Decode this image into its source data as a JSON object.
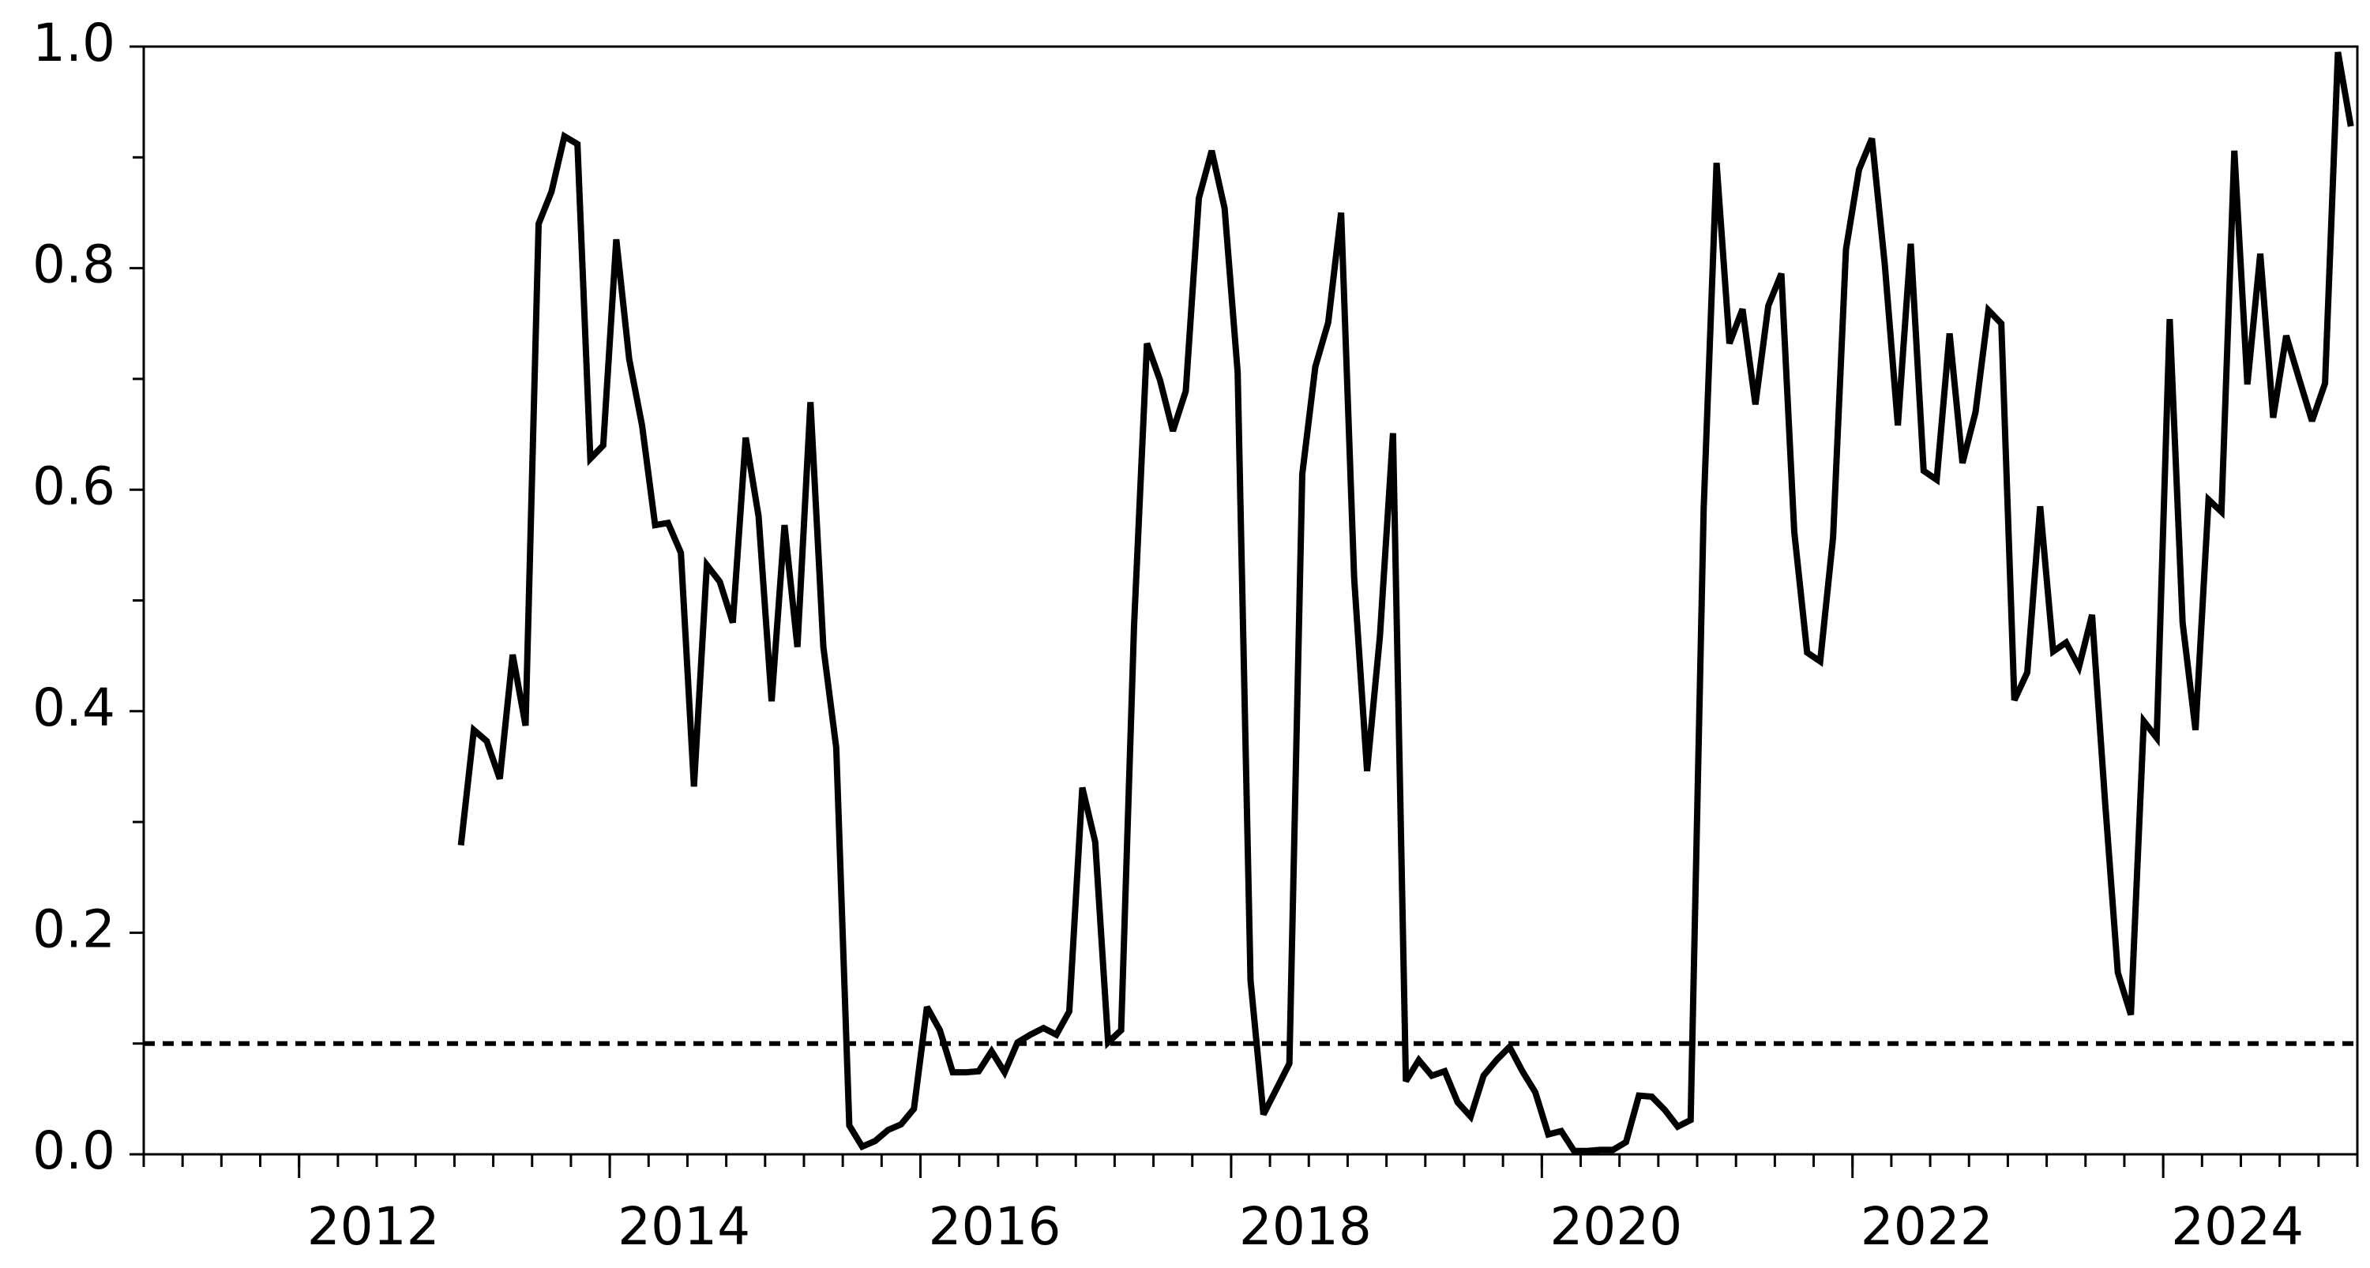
{
  "chart_data": {
    "type": "line",
    "x": [
      2013.042,
      2013.125,
      2013.208,
      2013.292,
      2013.375,
      2013.458,
      2013.542,
      2013.625,
      2013.708,
      2013.792,
      2013.875,
      2013.958,
      2014.042,
      2014.125,
      2014.208,
      2014.292,
      2014.375,
      2014.458,
      2014.542,
      2014.625,
      2014.708,
      2014.792,
      2014.875,
      2014.958,
      2015.042,
      2015.125,
      2015.208,
      2015.292,
      2015.375,
      2015.458,
      2015.542,
      2015.625,
      2015.708,
      2015.792,
      2015.875,
      2015.958,
      2016.042,
      2016.125,
      2016.208,
      2016.292,
      2016.375,
      2016.458,
      2016.542,
      2016.625,
      2016.708,
      2016.792,
      2016.875,
      2016.958,
      2017.042,
      2017.125,
      2017.208,
      2017.292,
      2017.375,
      2017.458,
      2017.542,
      2017.625,
      2017.708,
      2017.792,
      2017.875,
      2017.958,
      2018.042,
      2018.125,
      2018.208,
      2018.292,
      2018.375,
      2018.458,
      2018.542,
      2018.625,
      2018.708,
      2018.792,
      2018.875,
      2018.958,
      2019.042,
      2019.125,
      2019.208,
      2019.292,
      2019.375,
      2019.458,
      2019.542,
      2019.625,
      2019.708,
      2019.792,
      2019.875,
      2019.958,
      2020.042,
      2020.125,
      2020.208,
      2020.292,
      2020.375,
      2020.458,
      2020.542,
      2020.625,
      2020.708,
      2020.792,
      2020.875,
      2020.958,
      2021.042,
      2021.125,
      2021.208,
      2021.292,
      2021.375,
      2021.458,
      2021.542,
      2021.625,
      2021.708,
      2021.792,
      2021.875,
      2021.958,
      2022.042,
      2022.125,
      2022.208,
      2022.292,
      2022.375,
      2022.458,
      2022.542,
      2022.625,
      2022.708,
      2022.792,
      2022.875,
      2022.958,
      2023.042,
      2023.125,
      2023.208,
      2023.292,
      2023.375,
      2023.458,
      2023.542,
      2023.625,
      2023.708,
      2023.792,
      2023.875,
      2023.958,
      2024.042,
      2024.125,
      2024.208,
      2024.292,
      2024.375,
      2024.458,
      2024.542,
      2024.625,
      2024.708,
      2024.792,
      2024.875,
      2024.958,
      2025.042,
      2025.125,
      2025.208
    ],
    "values": [
      0.279,
      0.383,
      0.373,
      0.339,
      0.451,
      0.387,
      0.84,
      0.869,
      0.919,
      0.912,
      0.628,
      0.64,
      0.826,
      0.718,
      0.658,
      0.568,
      0.57,
      0.543,
      0.332,
      0.532,
      0.517,
      0.48,
      0.647,
      0.576,
      0.409,
      0.568,
      0.458,
      0.679,
      0.458,
      0.367,
      0.026,
      0.007,
      0.012,
      0.022,
      0.027,
      0.041,
      0.133,
      0.112,
      0.074,
      0.074,
      0.075,
      0.093,
      0.074,
      0.101,
      0.108,
      0.114,
      0.108,
      0.129,
      0.331,
      0.282,
      0.101,
      0.112,
      0.477,
      0.732,
      0.699,
      0.653,
      0.689,
      0.863,
      0.906,
      0.854,
      0.706,
      0.157,
      0.036,
      0.059,
      0.082,
      0.614,
      0.711,
      0.751,
      0.85,
      0.52,
      0.346,
      0.468,
      0.651,
      0.066,
      0.085,
      0.071,
      0.075,
      0.047,
      0.034,
      0.071,
      0.085,
      0.097,
      0.075,
      0.056,
      0.018,
      0.021,
      0.003,
      0.003,
      0.004,
      0.004,
      0.011,
      0.053,
      0.052,
      0.04,
      0.025,
      0.031,
      0.583,
      0.895,
      0.732,
      0.763,
      0.677,
      0.766,
      0.795,
      0.562,
      0.453,
      0.445,
      0.557,
      0.817,
      0.889,
      0.917,
      0.803,
      0.658,
      0.822,
      0.617,
      0.609,
      0.741,
      0.624,
      0.67,
      0.762,
      0.75,
      0.41,
      0.435,
      0.585,
      0.454,
      0.462,
      0.44,
      0.487,
      0.32,
      0.164,
      0.126,
      0.391,
      0.376,
      0.754,
      0.48,
      0.383,
      0.591,
      0.58,
      0.906,
      0.695,
      0.813,
      0.665,
      0.739,
      0.7,
      0.662,
      0.696,
      0.995,
      0.928
    ],
    "color": "#000000",
    "reference_line": 0.1,
    "xlim": [
      2011,
      2025.25
    ],
    "xticks": [
      2012,
      2014,
      2016,
      2018,
      2020,
      2022,
      2024
    ],
    "ylim": [
      0,
      1
    ],
    "yticks": [
      {
        "value": 0,
        "label": "0.0"
      },
      0.2,
      0.4,
      0.6,
      0.8,
      {
        "value": 1,
        "label": "1.0"
      }
    ],
    "grid": false
  }
}
